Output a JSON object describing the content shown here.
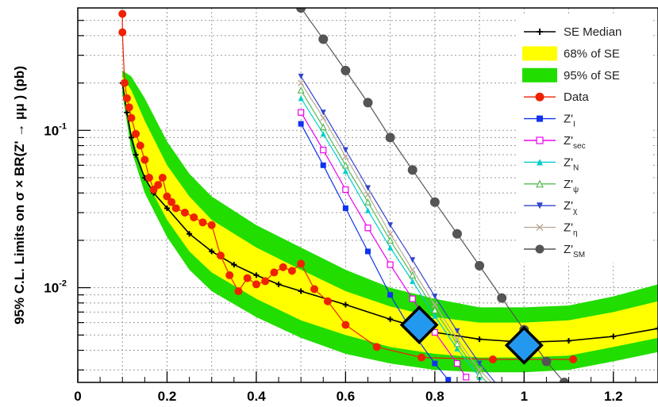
{
  "chart_data": {
    "type": "line",
    "title": "",
    "xlabel": "",
    "ylabel": "95% C.L. Limits on σ × BR(Z' → μμ ) (pb)",
    "xlim": [
      0,
      1.3
    ],
    "ylim": [
      0.0025,
      0.6
    ],
    "yscale": "log",
    "grid": true,
    "legend_position": "top-right",
    "x_ticks": [
      {
        "value": 0,
        "label": "0"
      },
      {
        "value": 0.2,
        "label": "0.2"
      },
      {
        "value": 0.4,
        "label": "0.4"
      },
      {
        "value": 0.6,
        "label": "0.6"
      },
      {
        "value": 0.8,
        "label": "0.8"
      },
      {
        "value": 1.0,
        "label": "1"
      },
      {
        "value": 1.2,
        "label": "1.2"
      }
    ],
    "y_ticks": [
      {
        "value": 0.1,
        "base": "10",
        "exp": "-1"
      },
      {
        "value": 0.01,
        "base": "10",
        "exp": "-2"
      }
    ],
    "bands": [
      {
        "name": "95% of SE",
        "color": "#22dd00",
        "x": [
          0.1,
          0.12,
          0.15,
          0.2,
          0.25,
          0.3,
          0.4,
          0.5,
          0.6,
          0.7,
          0.8,
          0.9,
          1.0,
          1.1,
          1.2,
          1.3
        ],
        "lower": [
          0.17,
          0.075,
          0.04,
          0.021,
          0.013,
          0.0095,
          0.0065,
          0.0048,
          0.0038,
          0.0033,
          0.003,
          0.0029,
          0.0029,
          0.003,
          0.0034,
          0.0039
        ],
        "upper": [
          0.24,
          0.22,
          0.16,
          0.085,
          0.053,
          0.038,
          0.025,
          0.018,
          0.013,
          0.01,
          0.0085,
          0.0075,
          0.0075,
          0.0077,
          0.0088,
          0.0105
        ]
      },
      {
        "name": "68% of SE",
        "color": "#ffff00",
        "x": [
          0.1,
          0.12,
          0.15,
          0.2,
          0.25,
          0.3,
          0.4,
          0.5,
          0.6,
          0.7,
          0.8,
          0.9,
          1.0,
          1.1,
          1.2,
          1.3
        ],
        "lower": [
          0.19,
          0.095,
          0.05,
          0.027,
          0.017,
          0.0125,
          0.0085,
          0.0062,
          0.005,
          0.0042,
          0.0038,
          0.0036,
          0.0036,
          0.0037,
          0.0042,
          0.0048
        ],
        "upper": [
          0.22,
          0.18,
          0.115,
          0.06,
          0.038,
          0.027,
          0.018,
          0.013,
          0.0095,
          0.0076,
          0.0065,
          0.006,
          0.006,
          0.0062,
          0.007,
          0.0082
        ]
      }
    ],
    "series": [
      {
        "name": "SE Median",
        "color": "#000000",
        "marker": "plus",
        "x": [
          0.1,
          0.11,
          0.12,
          0.13,
          0.15,
          0.17,
          0.2,
          0.25,
          0.3,
          0.35,
          0.4,
          0.45,
          0.5,
          0.6,
          0.7,
          0.8,
          0.9,
          1.0,
          1.1,
          1.2,
          1.3
        ],
        "y": [
          0.2,
          0.13,
          0.09,
          0.07,
          0.05,
          0.04,
          0.032,
          0.022,
          0.017,
          0.014,
          0.012,
          0.0105,
          0.0095,
          0.0078,
          0.0063,
          0.0052,
          0.0047,
          0.0045,
          0.0046,
          0.0049,
          0.0055
        ]
      },
      {
        "name": "Data",
        "color": "#ee2200",
        "marker": "circle",
        "x": [
          0.1,
          0.1,
          0.105,
          0.11,
          0.115,
          0.12,
          0.13,
          0.14,
          0.15,
          0.16,
          0.17,
          0.18,
          0.19,
          0.2,
          0.21,
          0.22,
          0.24,
          0.26,
          0.28,
          0.3,
          0.32,
          0.34,
          0.36,
          0.38,
          0.4,
          0.42,
          0.44,
          0.46,
          0.48,
          0.5,
          0.53,
          0.56,
          0.6,
          0.67,
          0.77,
          0.93,
          1.11
        ],
        "y": [
          0.55,
          0.42,
          0.2,
          0.16,
          0.14,
          0.12,
          0.095,
          0.08,
          0.065,
          0.05,
          0.042,
          0.045,
          0.05,
          0.038,
          0.035,
          0.032,
          0.03,
          0.028,
          0.026,
          0.025,
          0.016,
          0.012,
          0.0095,
          0.0115,
          0.0105,
          0.011,
          0.0125,
          0.0135,
          0.0128,
          0.0142,
          0.0098,
          0.0082,
          0.0058,
          0.0042,
          0.0036,
          0.0035,
          0.0035
        ]
      },
      {
        "name": "Z'I",
        "sub": "I",
        "color": "#1133ee",
        "marker": "square",
        "x": [
          0.5,
          0.55,
          0.6,
          0.65,
          0.7,
          0.75,
          0.8,
          0.83
        ],
        "y": [
          0.11,
          0.06,
          0.032,
          0.017,
          0.009,
          0.0052,
          0.0033,
          0.0026
        ]
      },
      {
        "name": "Z'sec",
        "sub": "sec",
        "color": "#ee00ee",
        "marker": "open-square",
        "x": [
          0.5,
          0.55,
          0.6,
          0.65,
          0.7,
          0.75,
          0.8,
          0.85,
          0.87
        ],
        "y": [
          0.13,
          0.075,
          0.042,
          0.024,
          0.014,
          0.0085,
          0.0052,
          0.0033,
          0.0027
        ]
      },
      {
        "name": "Z'N",
        "sub": "N",
        "color": "#00cccc",
        "marker": "triangle",
        "x": [
          0.5,
          0.55,
          0.6,
          0.65,
          0.7,
          0.75,
          0.8,
          0.85,
          0.9
        ],
        "y": [
          0.16,
          0.095,
          0.055,
          0.031,
          0.018,
          0.011,
          0.0066,
          0.0041,
          0.0027
        ]
      },
      {
        "name": "Z'ψ",
        "sub": "ψ",
        "color": "#55bb55",
        "marker": "open-triangle",
        "x": [
          0.5,
          0.55,
          0.6,
          0.65,
          0.7,
          0.75,
          0.8,
          0.85,
          0.9,
          0.93
        ],
        "y": [
          0.18,
          0.105,
          0.06,
          0.035,
          0.02,
          0.012,
          0.0072,
          0.0044,
          0.0028,
          0.0023
        ]
      },
      {
        "name": "Z'χ",
        "sub": "χ",
        "color": "#3344cc",
        "marker": "inv-triangle",
        "x": [
          0.5,
          0.55,
          0.6,
          0.65,
          0.7,
          0.75,
          0.8,
          0.85,
          0.9,
          0.94
        ],
        "y": [
          0.22,
          0.13,
          0.075,
          0.043,
          0.025,
          0.015,
          0.0088,
          0.0053,
          0.0033,
          0.0024
        ]
      },
      {
        "name": "Z'η",
        "sub": "η",
        "color": "#bbaa99",
        "marker": "cross",
        "x": [
          0.5,
          0.55,
          0.6,
          0.65,
          0.7,
          0.75,
          0.8,
          0.85,
          0.9,
          0.94
        ],
        "y": [
          0.2,
          0.12,
          0.068,
          0.039,
          0.022,
          0.013,
          0.0078,
          0.0047,
          0.003,
          0.0023
        ]
      },
      {
        "name": "Z'SM",
        "sub": "SM",
        "color": "#555555",
        "marker": "circle",
        "x": [
          0.5,
          0.55,
          0.6,
          0.65,
          0.7,
          0.75,
          0.8,
          0.85,
          0.9,
          0.95,
          1.0,
          1.05,
          1.09
        ],
        "y": [
          0.6,
          0.38,
          0.24,
          0.15,
          0.09,
          0.056,
          0.035,
          0.022,
          0.0138,
          0.0086,
          0.0054,
          0.0034,
          0.0025
        ]
      }
    ],
    "annotations": [
      {
        "shape": "diamond",
        "color": "#2299ee",
        "x": 0.765,
        "y": 0.0058
      },
      {
        "shape": "diamond",
        "color": "#2299ee",
        "x": 1.0,
        "y": 0.0043
      }
    ],
    "legend": [
      {
        "label": "SE Median",
        "kind": "line",
        "color": "#000000",
        "marker": "plus"
      },
      {
        "label": "68% of SE",
        "kind": "box",
        "color": "#ffff00"
      },
      {
        "label": "95% of SE",
        "kind": "box",
        "color": "#22dd00"
      },
      {
        "label": "Data",
        "kind": "line",
        "color": "#ee2200",
        "marker": "circle"
      },
      {
        "label": "Z'",
        "sub": "I",
        "kind": "line",
        "color": "#1133ee",
        "marker": "square"
      },
      {
        "label": "Z'",
        "sub": "sec",
        "kind": "line",
        "color": "#ee00ee",
        "marker": "open-square"
      },
      {
        "label": "Z'",
        "sub": "N",
        "kind": "line",
        "color": "#00cccc",
        "marker": "triangle"
      },
      {
        "label": "Z'",
        "sub": "ψ",
        "kind": "line",
        "color": "#55bb55",
        "marker": "open-triangle"
      },
      {
        "label": "Z'",
        "sub": "χ",
        "kind": "line",
        "color": "#3344cc",
        "marker": "inv-triangle"
      },
      {
        "label": "Z'",
        "sub": "η",
        "kind": "line",
        "color": "#bbaa99",
        "marker": "cross"
      },
      {
        "label": "Z'",
        "sub": "SM",
        "kind": "line",
        "color": "#555555",
        "marker": "circle"
      }
    ]
  }
}
